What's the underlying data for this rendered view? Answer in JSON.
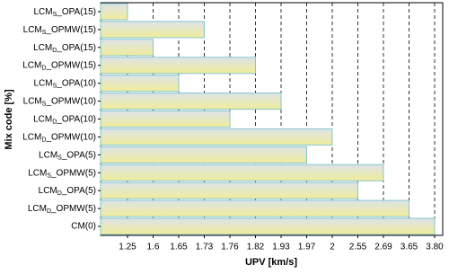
{
  "chart_data": {
    "type": "bar",
    "orientation": "horizontal",
    "x_label": "UPV [km/s]",
    "y_label": "Mix code [%]",
    "categories": [
      "LCMS_OPA(15)",
      "LCMS_OPMW(15)",
      "LCMD_OPA(15)",
      "LCMD_OPMW(15)",
      "LCMS_OPA(10)",
      "LCMS_OPMW(10)",
      "LCMD_OPA(10)",
      "LCMD_OPMW(10)",
      "LCMS_OPA(5)",
      "LCMS_OPMW(5)",
      "LCMD_OPA(5)",
      "LCMD_OPMW(5)",
      "CM(0)"
    ],
    "values": [
      1.25,
      1.73,
      1.6,
      1.82,
      1.65,
      1.93,
      1.76,
      2,
      1.97,
      2.69,
      2.55,
      3.65,
      3.8
    ],
    "xticks": [
      1.25,
      1.6,
      1.65,
      1.73,
      1.76,
      1.82,
      1.93,
      1.97,
      2,
      2.55,
      2.69,
      3.65,
      {
        "value": 3.8,
        "label": "3.80"
      }
    ],
    "color": "#f0ec9a",
    "edge_color": "#86c6cf",
    "grid": true
  }
}
